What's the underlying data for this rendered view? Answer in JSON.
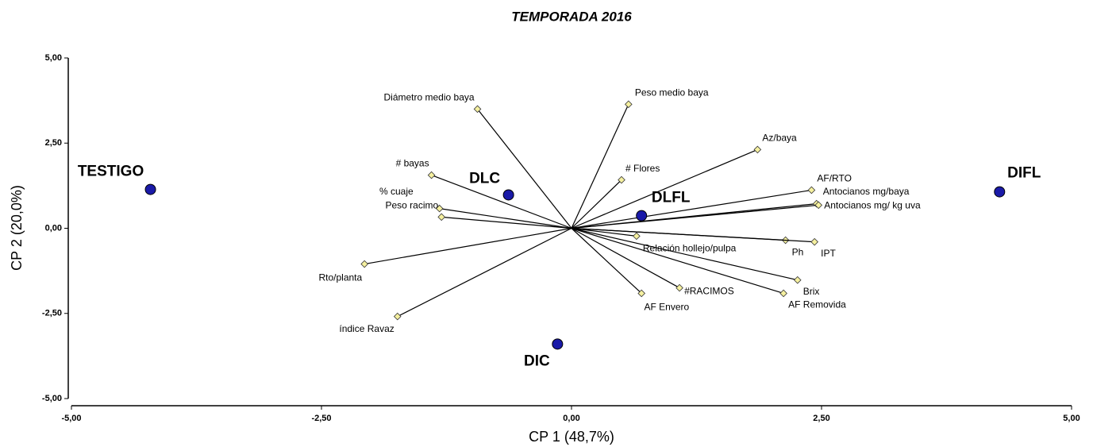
{
  "chart_data": {
    "type": "biplot",
    "title": "TEMPORADA 2016",
    "xlabel": "CP 1 (48,7%)",
    "ylabel": "CP 2 (20,0%)",
    "xlim": [
      -5,
      5
    ],
    "ylim": [
      -5,
      5
    ],
    "xticks": [
      {
        "value": -5,
        "label": "-5,00"
      },
      {
        "value": -2.5,
        "label": "-2,50"
      },
      {
        "value": 0,
        "label": "0,00"
      },
      {
        "value": 2.5,
        "label": "2,50"
      },
      {
        "value": 5,
        "label": "5,00"
      }
    ],
    "yticks": [
      {
        "value": -5,
        "label": "-5,00"
      },
      {
        "value": -2.5,
        "label": "-2,50"
      },
      {
        "value": 0,
        "label": "0,00"
      },
      {
        "value": 2.5,
        "label": "2,50"
      },
      {
        "value": 5,
        "label": "5,00"
      }
    ],
    "points": {
      "color": "#1a1aa8",
      "labels": [
        "TESTIGO",
        "DLC",
        "DLFL",
        "DIFL",
        "DIC"
      ],
      "x": [
        -4.21,
        -0.63,
        0.7,
        4.28,
        -0.14
      ],
      "y": [
        1.14,
        0.98,
        0.37,
        1.07,
        -3.4
      ]
    },
    "vectors": {
      "color": "#f5f0a0",
      "labels": [
        "Diámetro medio baya",
        "Peso medio baya",
        "Az/baya",
        "# Flores",
        "# bayas",
        "% cuaje",
        "Peso racimo",
        "AF/RTO",
        "Antocianos mg/baya",
        "Antocianos mg/ kg uva",
        "Ph",
        "IPT",
        "Relación hollejo/pulpa",
        "Brix",
        "AF Removida",
        "#RACIMOS",
        "AF Envero",
        "Rto/planta",
        "índice Ravaz"
      ],
      "x": [
        -0.94,
        0.57,
        1.86,
        0.5,
        -1.4,
        -1.32,
        -1.3,
        2.4,
        2.45,
        2.47,
        2.14,
        2.43,
        0.65,
        2.26,
        2.12,
        1.08,
        0.7,
        -2.07,
        -1.74
      ],
      "y": [
        3.5,
        3.64,
        2.31,
        1.42,
        1.56,
        0.58,
        0.33,
        1.12,
        0.72,
        0.68,
        -0.35,
        -0.4,
        -0.23,
        -1.52,
        -1.91,
        -1.75,
        -1.91,
        -1.05,
        -2.59
      ]
    }
  }
}
